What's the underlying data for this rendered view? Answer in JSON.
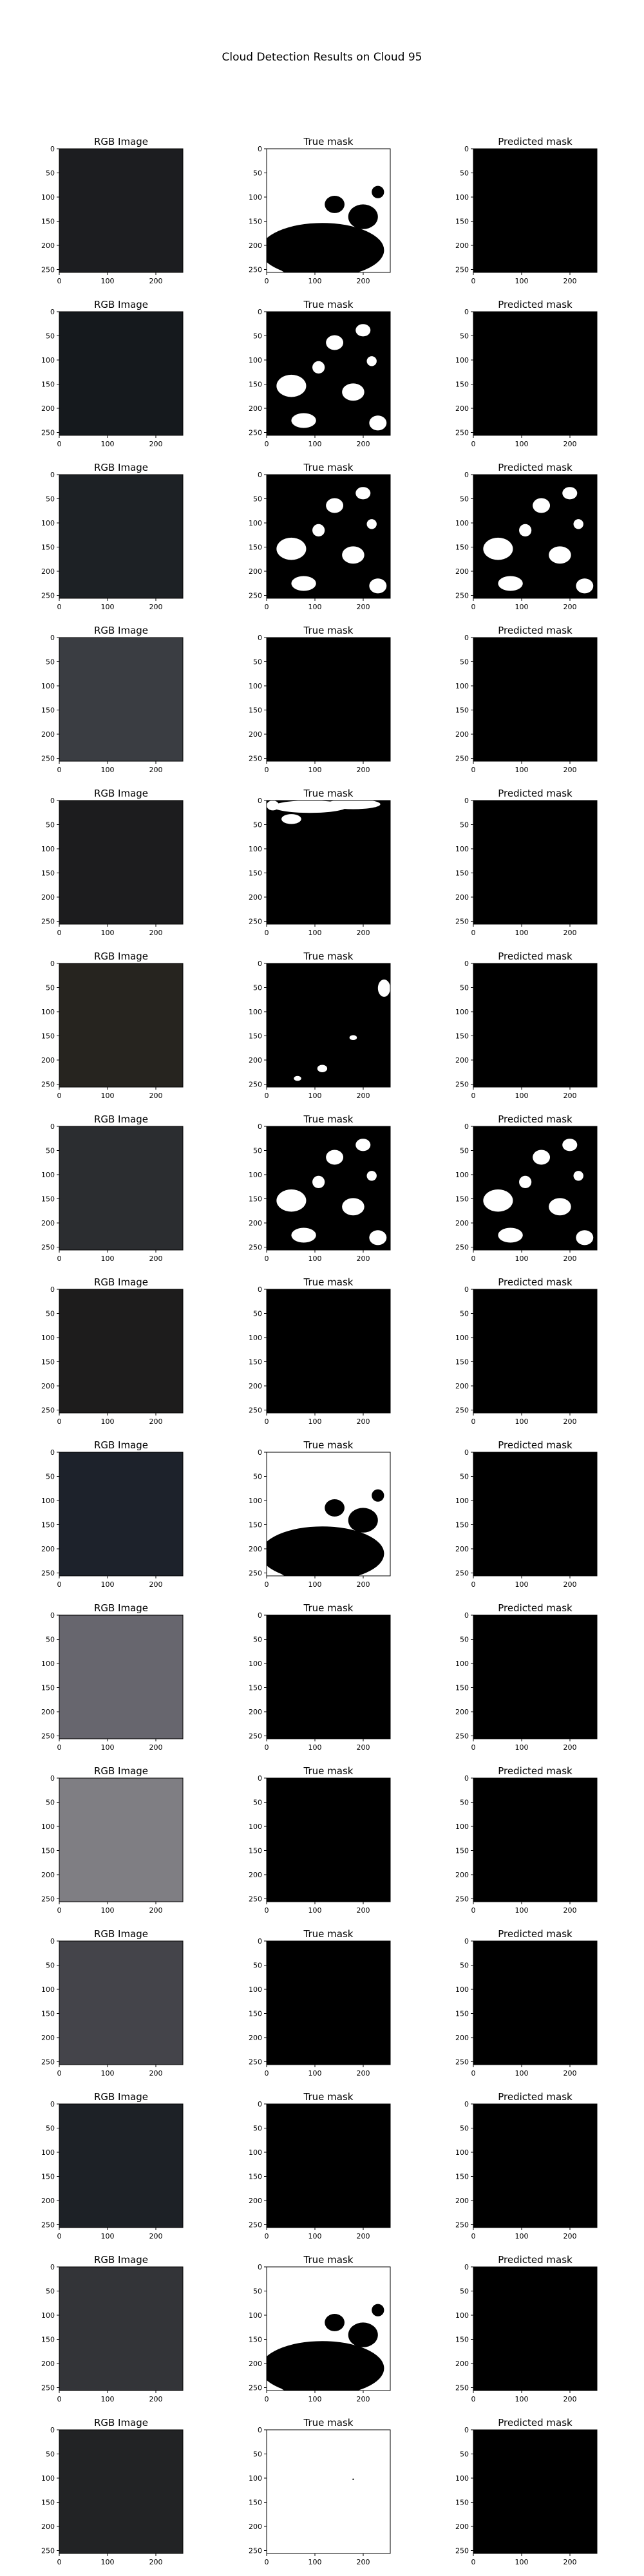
{
  "figure": {
    "suptitle": "Cloud Detection Results on Cloud 95",
    "column_titles": [
      "RGB Image",
      "True mask",
      "Predicted mask"
    ]
  },
  "axes": {
    "x_ticks": [
      0,
      100,
      200
    ],
    "y_ticks": [
      0,
      50,
      100,
      150,
      200,
      250
    ],
    "range": [
      0,
      256
    ]
  },
  "chart_data": {
    "type": "heatmap",
    "title": "Cloud Detection Results on Cloud 95",
    "layout": "15 rows x 3 columns image grid",
    "columns": [
      "RGB Image",
      "True mask",
      "Predicted mask"
    ],
    "xlim": [
      0,
      256
    ],
    "ylim": [
      256,
      0
    ],
    "rows": [
      {
        "rgb_color": "#1c1d20",
        "true_mask": "mostly cloud",
        "predicted_mask": "empty"
      },
      {
        "rgb_color": "#15191d",
        "true_mask": "scattered clouds",
        "predicted_mask": "empty"
      },
      {
        "rgb_color": "#1d2125",
        "true_mask": "scattered clouds",
        "predicted_mask": "scattered clouds"
      },
      {
        "rgb_color": "#3a3d42",
        "true_mask": "empty",
        "predicted_mask": "empty"
      },
      {
        "rgb_color": "#1c1c1e",
        "true_mask": "clouds at top",
        "predicted_mask": "empty"
      },
      {
        "rgb_color": "#26241f",
        "true_mask": "few clouds",
        "predicted_mask": "empty"
      },
      {
        "rgb_color": "#2b2d30",
        "true_mask": "scattered clouds",
        "predicted_mask": "scattered clouds"
      },
      {
        "rgb_color": "#1d1c1c",
        "true_mask": "empty",
        "predicted_mask": "empty"
      },
      {
        "rgb_color": "#1d222b",
        "true_mask": "mostly cloud",
        "predicted_mask": "empty"
      },
      {
        "rgb_color": "#67666e",
        "true_mask": "empty",
        "predicted_mask": "empty"
      },
      {
        "rgb_color": "#7f7e83",
        "true_mask": "empty",
        "predicted_mask": "empty"
      },
      {
        "rgb_color": "#44444a",
        "true_mask": "empty",
        "predicted_mask": "empty"
      },
      {
        "rgb_color": "#1d2126",
        "true_mask": "empty",
        "predicted_mask": "empty"
      },
      {
        "rgb_color": "#333438",
        "true_mask": "mostly cloud",
        "predicted_mask": "empty"
      },
      {
        "rgb_color": "#222325",
        "true_mask": "full cloud",
        "predicted_mask": "empty"
      }
    ]
  }
}
